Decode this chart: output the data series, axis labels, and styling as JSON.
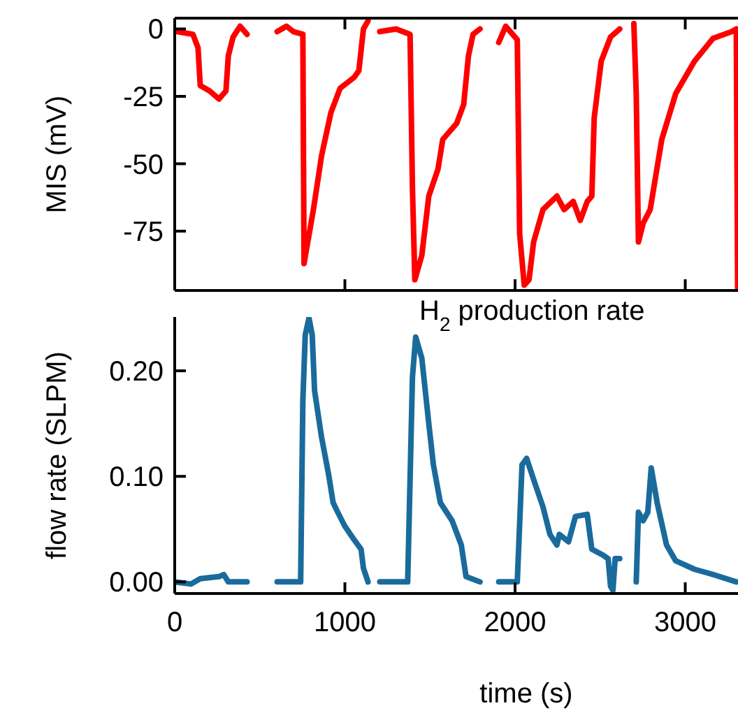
{
  "chart_data": [
    {
      "type": "line",
      "ylabel": "MIS (mV)",
      "xlim": [
        0,
        3310
      ],
      "ylim": [
        -97,
        4
      ],
      "xticks": [
        0,
        1000,
        2000,
        3000
      ],
      "yticks": [
        0,
        -25,
        -50,
        -75
      ],
      "tick_labels": "y",
      "grid": false,
      "marker": "none",
      "line_style": "solid",
      "series": [
        {
          "color": "#ff0000",
          "x": [
            14,
            107,
            137,
            150,
            205,
            260,
            301,
            315,
            343,
            384,
            425,
            510,
            602,
            657,
            698,
            753,
            760,
            815,
            863,
            918,
            972,
            1054,
            1082,
            1109,
            1136,
            1170,
            1205,
            1301,
            1383,
            1397,
            1411,
            1452,
            1493,
            1547,
            1575,
            1657,
            1698,
            1726,
            1753,
            1794,
            1850,
            1904,
            1945,
            2013,
            2027,
            2054,
            2082,
            2109,
            2164,
            2246,
            2288,
            2342,
            2383,
            2424,
            2451,
            2465,
            2506,
            2561,
            2615,
            2655,
            2698,
            2712,
            2725,
            2753,
            2794,
            2862,
            2944,
            3054,
            3163,
            3273,
            3300,
            3308
          ],
          "values": [
            -1,
            -2,
            -7,
            -21,
            -23,
            -26,
            -23,
            -10,
            -3,
            1,
            -2,
            null,
            -1,
            1,
            -1,
            -2,
            -87,
            -67,
            -47,
            -31,
            -22,
            -18,
            -15.5,
            0,
            3,
            null,
            -1,
            0,
            -2,
            -59,
            -93,
            -84,
            -62,
            -52,
            -41,
            -35,
            -28,
            -10,
            -2,
            0,
            null,
            -5,
            1,
            -4,
            -76,
            -95,
            -93,
            -79,
            -67,
            -62,
            -67,
            -64,
            -71,
            -64,
            -62,
            -33,
            -12,
            -3,
            0,
            null,
            2,
            -24,
            -79,
            -72,
            -67,
            -41,
            -24,
            -12,
            -3.5,
            -1,
            0,
            -96
          ]
        }
      ]
    },
    {
      "type": "line",
      "xlabel": "time (s)",
      "ylabel": "flow rate (SLPM)",
      "annotations": [
        "H$_{2}$ production rate"
      ],
      "xlim": [
        0,
        3310
      ],
      "ylim": [
        -0.011,
        0.251
      ],
      "xticks": [
        0,
        1000,
        2000,
        3000
      ],
      "yticks": [
        {
          "value": 0,
          "label": "0.00"
        },
        {
          "value": 0.1,
          "label": "0.10"
        },
        {
          "value": 0.2,
          "label": "0.20"
        }
      ],
      "grid": false,
      "marker": "none",
      "line_style": "solid",
      "series": [
        {
          "color": "#1a6b9c",
          "x": [
            0,
            96,
            150,
            260,
            288,
            315,
            425,
            510,
            602,
            740,
            753,
            767,
            789,
            808,
            822,
            863,
            904,
            931,
            958,
            999,
            1054,
            1095,
            1109,
            1136,
            1170,
            1205,
            1369,
            1397,
            1416,
            1452,
            1493,
            1520,
            1561,
            1630,
            1684,
            1712,
            1794,
            1850,
            1904,
            2013,
            2041,
            2068,
            2109,
            2164,
            2205,
            2246,
            2260,
            2314,
            2355,
            2424,
            2451,
            2520,
            2547,
            2561,
            2575,
            2588,
            2615,
            2660,
            2712,
            2725,
            2753,
            2780,
            2800,
            2835,
            2890,
            2944,
            3054,
            3163,
            3300
          ],
          "values": [
            0,
            -0.002,
            0.003,
            0.005,
            0.007,
            0,
            0,
            null,
            0,
            0,
            0.172,
            0.234,
            0.25,
            0.234,
            0.181,
            0.137,
            0.102,
            0.075,
            0.066,
            0.053,
            0.04,
            0.031,
            0.013,
            0,
            null,
            0,
            0,
            0.194,
            0.232,
            0.212,
            0.15,
            0.111,
            0.075,
            0.058,
            0.035,
            0.005,
            0,
            null,
            0,
            0,
            0.111,
            0.117,
            0.097,
            0.071,
            0.045,
            0.035,
            0.045,
            0.038,
            0.062,
            0.064,
            0.031,
            0.025,
            0.022,
            -0.004,
            -0.008,
            0.022,
            0.022,
            null,
            0,
            0.066,
            0.058,
            0.066,
            0.108,
            0.075,
            0.035,
            0.02,
            0.012,
            0.007,
            0
          ]
        }
      ]
    }
  ]
}
